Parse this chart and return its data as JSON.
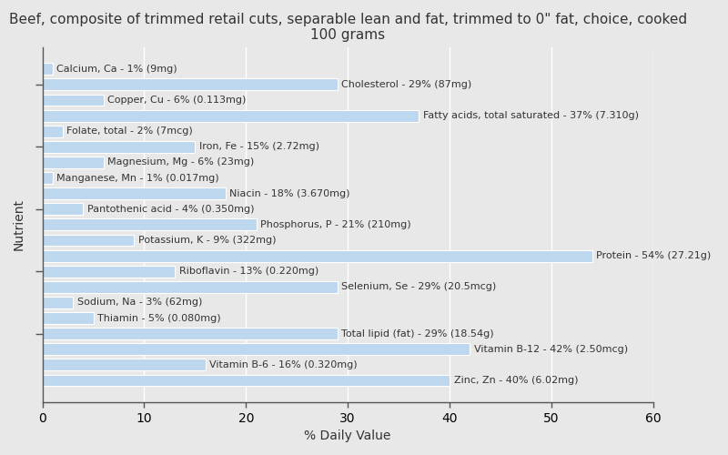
{
  "title": "Beef, composite of trimmed retail cuts, separable lean and fat, trimmed to 0\" fat, choice, cooked\n100 grams",
  "xlabel": "% Daily Value",
  "ylabel": "Nutrient",
  "xlim": [
    0,
    60
  ],
  "xticks": [
    0,
    10,
    20,
    30,
    40,
    50,
    60
  ],
  "bar_color": "#bdd7ee",
  "bar_edge_color": "#ffffff",
  "background_color": "#e8e8e8",
  "plot_bg_color": "#e8e8e8",
  "text_color": "#333333",
  "label_fontsize": 8,
  "title_fontsize": 11,
  "nutrients": [
    {
      "label": "Calcium, Ca - 1% (9mg)",
      "value": 1
    },
    {
      "label": "Cholesterol - 29% (87mg)",
      "value": 29
    },
    {
      "label": "Copper, Cu - 6% (0.113mg)",
      "value": 6
    },
    {
      "label": "Fatty acids, total saturated - 37% (7.310g)",
      "value": 37
    },
    {
      "label": "Folate, total - 2% (7mcg)",
      "value": 2
    },
    {
      "label": "Iron, Fe - 15% (2.72mg)",
      "value": 15
    },
    {
      "label": "Magnesium, Mg - 6% (23mg)",
      "value": 6
    },
    {
      "label": "Manganese, Mn - 1% (0.017mg)",
      "value": 1
    },
    {
      "label": "Niacin - 18% (3.670mg)",
      "value": 18
    },
    {
      "label": "Pantothenic acid - 4% (0.350mg)",
      "value": 4
    },
    {
      "label": "Phosphorus, P - 21% (210mg)",
      "value": 21
    },
    {
      "label": "Potassium, K - 9% (322mg)",
      "value": 9
    },
    {
      "label": "Protein - 54% (27.21g)",
      "value": 54
    },
    {
      "label": "Riboflavin - 13% (0.220mg)",
      "value": 13
    },
    {
      "label": "Selenium, Se - 29% (20.5mcg)",
      "value": 29
    },
    {
      "label": "Sodium, Na - 3% (62mg)",
      "value": 3
    },
    {
      "label": "Thiamin - 5% (0.080mg)",
      "value": 5
    },
    {
      "label": "Total lipid (fat) - 29% (18.54g)",
      "value": 29
    },
    {
      "label": "Vitamin B-12 - 42% (2.50mcg)",
      "value": 42
    },
    {
      "label": "Vitamin B-6 - 16% (0.320mg)",
      "value": 16
    },
    {
      "label": "Zinc, Zn - 40% (6.02mg)",
      "value": 40
    }
  ],
  "ytick_positions": [
    1,
    5,
    9,
    13,
    17
  ],
  "grid_color": "#ffffff",
  "spine_color": "#555555"
}
